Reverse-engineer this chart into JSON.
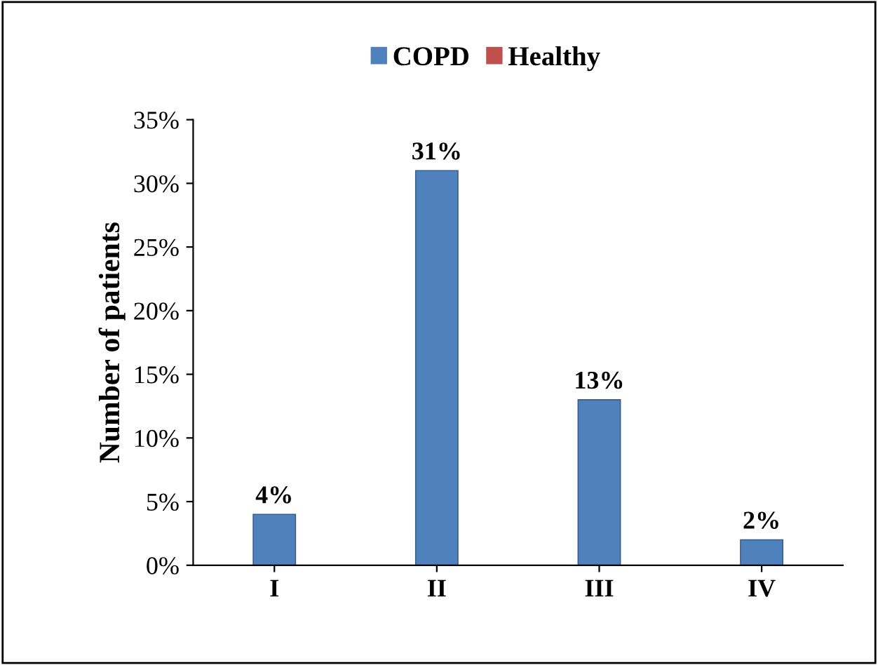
{
  "chart_data": {
    "type": "bar",
    "ylabel": "Number of patients",
    "categories": [
      "I",
      "II",
      "III",
      "IV"
    ],
    "series": [
      {
        "name": "COPD",
        "color": "#4f81bd",
        "values": [
          4,
          31,
          13,
          2
        ],
        "value_labels": [
          "4%",
          "31%",
          "13%",
          "2%"
        ]
      },
      {
        "name": "Healthy",
        "color": "#c0504d",
        "values": [
          null,
          null,
          null,
          null
        ]
      }
    ],
    "ylim": [
      0,
      35
    ],
    "yticks": [
      {
        "value": 0,
        "label": "0%"
      },
      {
        "value": 5,
        "label": "5%"
      },
      {
        "value": 10,
        "label": "10%"
      },
      {
        "value": 15,
        "label": "15%"
      },
      {
        "value": 20,
        "label": "20%"
      },
      {
        "value": 25,
        "label": "25%"
      },
      {
        "value": 30,
        "label": "30%"
      },
      {
        "value": 35,
        "label": "35%"
      }
    ],
    "grid": false,
    "legend": "top"
  }
}
